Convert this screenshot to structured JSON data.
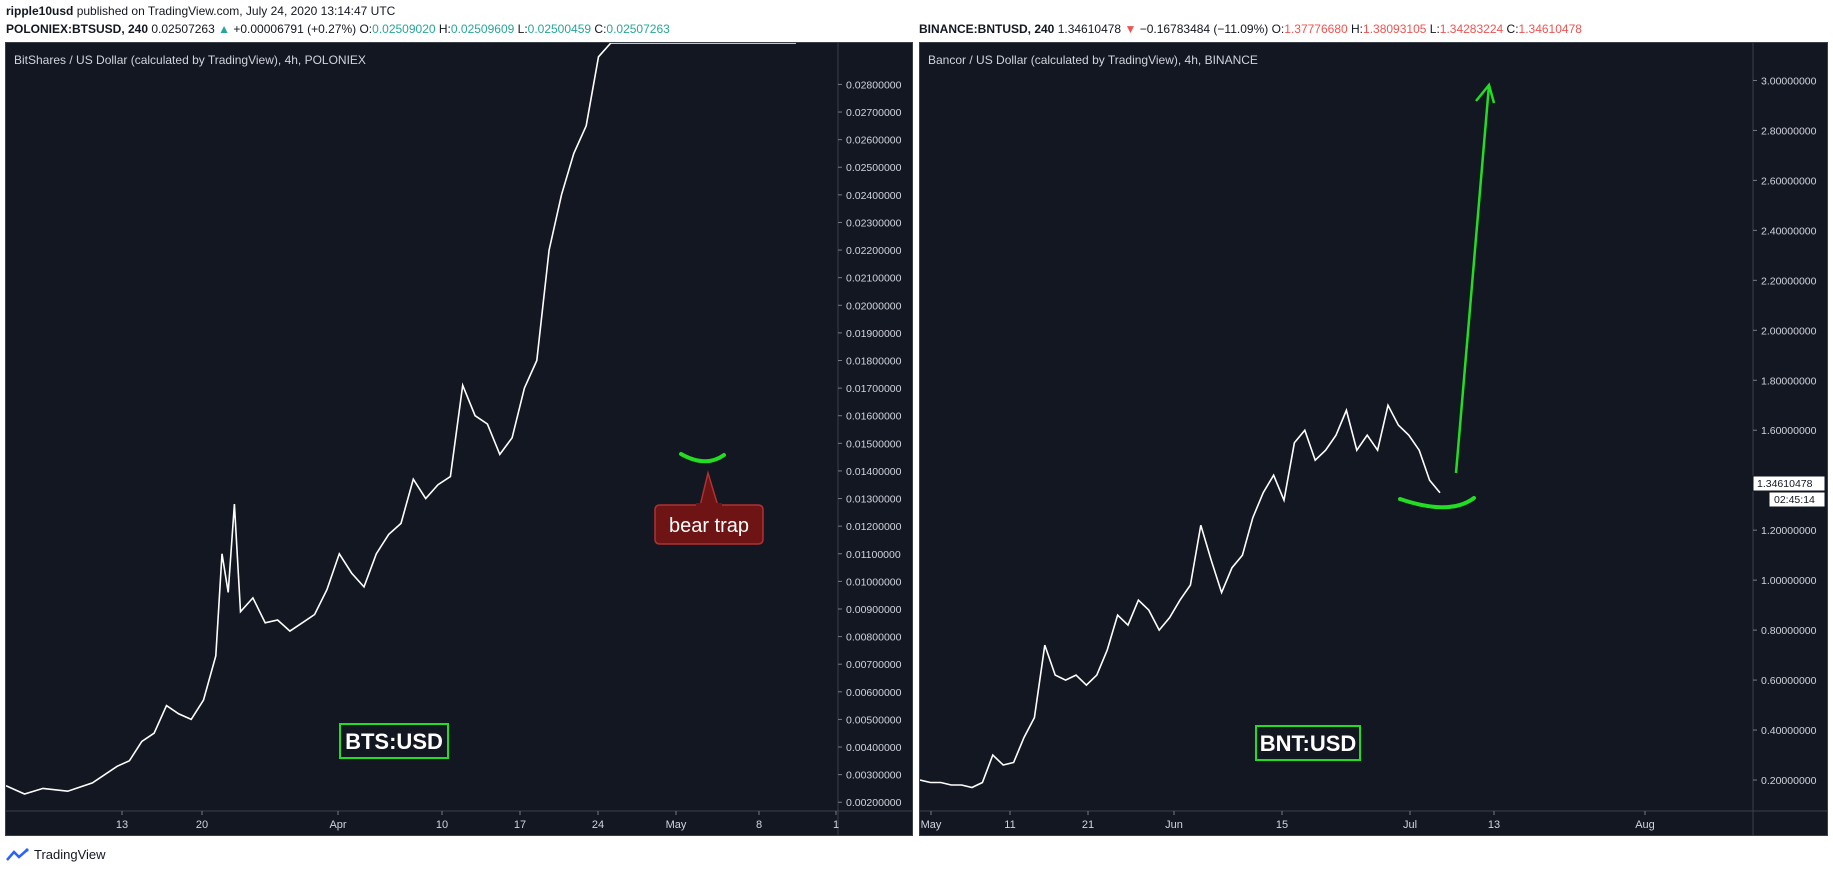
{
  "header": {
    "author": "ripple10usd",
    "published": "published on TradingView.com, July 24, 2020 13:14:47 UTC"
  },
  "left": {
    "symbol": "POLONIEX:BTSUSD, 240",
    "last": "0.02507263",
    "change": "+0.00006791 (+0.27%)",
    "ohlc": {
      "o": "0.02509020",
      "h": "0.02509609",
      "l": "0.02500459",
      "c": "0.02507263"
    },
    "title": "BitShares / US Dollar (calculated by TradingView), 4h, POLONIEX",
    "label": "BTS:USD",
    "annotation": "bear trap"
  },
  "right": {
    "symbol": "BINANCE:BNTUSD, 240",
    "last": "1.34610478",
    "change": "−0.16783484 (−11.09%)",
    "ohlc": {
      "o": "1.37776680",
      "h": "1.38093105",
      "l": "1.34283224",
      "c": "1.34610478"
    },
    "title": "Bancor / US Dollar (calculated by TradingView), 4h, BINANCE",
    "label": "BNT:USD",
    "price_tag": "1.34610478",
    "countdown": "02:45:14"
  },
  "footer": {
    "brand": "TradingView"
  },
  "colors": {
    "bg": "#131722",
    "line": "#ffffff",
    "axis_text": "#d1d4dc",
    "up": "#26a69a",
    "down": "#ef5350",
    "accent": "#22dd22",
    "trap": "#7a1b1b"
  },
  "chart_data": [
    {
      "type": "line",
      "series": "BTSUSD",
      "ylim": [
        0.0019,
        0.0295
      ],
      "y_ticks": [
        "0.02800000",
        "0.02700000",
        "0.02600000",
        "0.02500000",
        "0.02400000",
        "0.02300000",
        "0.02200000",
        "0.02100000",
        "0.02000000",
        "0.01900000",
        "0.01800000",
        "0.01700000",
        "0.01600000",
        "0.01500000",
        "0.01400000",
        "0.01300000",
        "0.01200000",
        "0.01100000",
        "0.01000000",
        "0.00900000",
        "0.00800000",
        "0.00700000",
        "0.00600000",
        "0.00500000",
        "0.00400000",
        "0.00300000",
        "0.00200000"
      ],
      "x_ticks": [
        "13",
        "20",
        "Apr",
        "10",
        "17",
        "24",
        "May",
        "8",
        "1"
      ],
      "x": [
        0,
        3,
        6,
        10,
        14,
        18,
        20,
        22,
        24,
        26,
        28,
        30,
        32,
        34,
        35,
        36,
        37,
        38,
        40,
        42,
        44,
        46,
        48,
        50,
        52,
        54,
        56,
        58,
        60,
        62,
        64,
        66,
        68,
        70,
        72,
        74,
        76,
        78,
        80,
        82,
        84,
        86,
        88,
        90,
        92,
        94,
        96,
        98,
        100,
        102,
        104,
        106,
        108,
        110,
        112,
        114,
        116,
        118,
        120,
        122,
        124,
        126,
        128
      ],
      "values": [
        0.0026,
        0.0023,
        0.0025,
        0.0024,
        0.0027,
        0.0033,
        0.0035,
        0.0042,
        0.0045,
        0.0055,
        0.0052,
        0.005,
        0.0057,
        0.0073,
        0.011,
        0.0096,
        0.0128,
        0.0089,
        0.0094,
        0.0085,
        0.0086,
        0.0082,
        0.0085,
        0.0088,
        0.0097,
        0.011,
        0.0103,
        0.0098,
        0.011,
        0.0117,
        0.0121,
        0.0137,
        0.013,
        0.0135,
        0.0138,
        0.0171,
        0.016,
        0.0157,
        0.0146,
        0.0152,
        0.017,
        0.018,
        0.022,
        0.024,
        0.0255,
        0.0265,
        0.029,
        0.0295,
        0.0295,
        0.0295,
        0.0295,
        0.0295,
        0.0295,
        0.0295,
        0.0295,
        0.0295,
        0.0295,
        0.0295,
        0.0295,
        0.0295,
        0.0295,
        0.0295,
        0.0295
      ]
    },
    {
      "type": "line",
      "series": "BNTUSD",
      "ylim": [
        0.1,
        3.15
      ],
      "y_ticks": [
        "3.00000000",
        "2.80000000",
        "2.60000000",
        "2.40000000",
        "2.20000000",
        "2.00000000",
        "1.80000000",
        "1.60000000",
        "1.40000000",
        "1.20000000",
        "1.00000000",
        "0.80000000",
        "0.60000000",
        "0.40000000",
        "0.20000000"
      ],
      "x_ticks": [
        "May",
        "11",
        "21",
        "Jun",
        "15",
        "Jul",
        "13",
        "Aug"
      ],
      "values": [
        0.2,
        0.19,
        0.19,
        0.18,
        0.18,
        0.17,
        0.19,
        0.3,
        0.26,
        0.27,
        0.37,
        0.45,
        0.74,
        0.62,
        0.6,
        0.62,
        0.58,
        0.62,
        0.72,
        0.86,
        0.82,
        0.92,
        0.88,
        0.8,
        0.85,
        0.92,
        0.98,
        1.22,
        1.08,
        0.95,
        1.05,
        1.1,
        1.25,
        1.35,
        1.42,
        1.32,
        1.55,
        1.6,
        1.48,
        1.52,
        1.58,
        1.68,
        1.52,
        1.58,
        1.52,
        1.7,
        1.62,
        1.58,
        1.52,
        1.4,
        1.35
      ],
      "last": 1.34610478
    }
  ]
}
